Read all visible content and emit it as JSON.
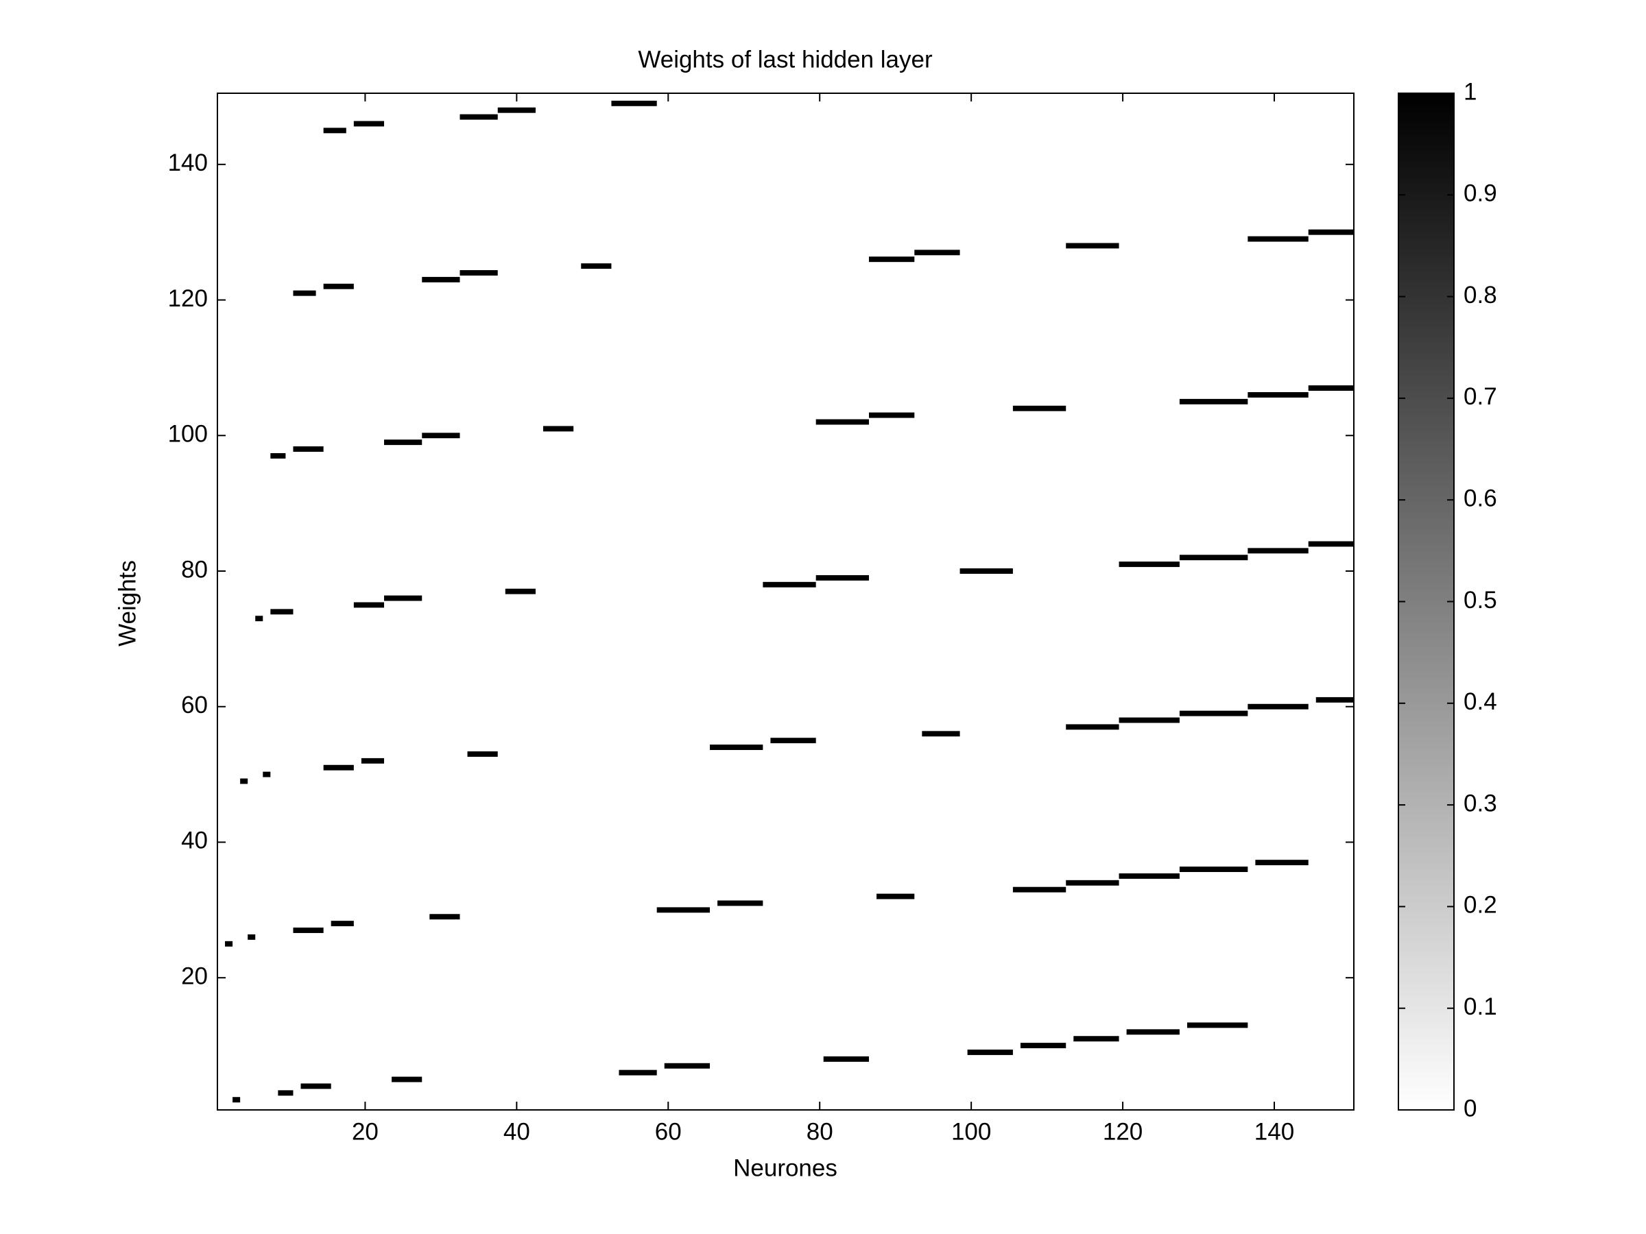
{
  "chart_data": {
    "type": "heatmap",
    "title": "Weights of last hidden layer",
    "x_label": "Neurones",
    "y_label": "Weights",
    "xlim": [
      0.5,
      150.5
    ],
    "ylim": [
      0.5,
      150.5
    ],
    "xticks": [
      20,
      40,
      60,
      80,
      100,
      120,
      140
    ],
    "yticks": [
      20,
      40,
      60,
      80,
      100,
      120,
      140
    ],
    "clim": [
      0,
      1
    ],
    "cticks": [
      0,
      0.1,
      0.2,
      0.3,
      0.4,
      0.5,
      0.6,
      0.7,
      0.8,
      0.9,
      1
    ],
    "colormap": [
      "#ffffff",
      "#000000"
    ],
    "cells": [
      {
        "y": 2,
        "x0": 3,
        "x1": 3,
        "v": 1
      },
      {
        "y": 3,
        "x0": 9,
        "x1": 10,
        "v": 1
      },
      {
        "y": 4,
        "x0": 12,
        "x1": 15,
        "v": 1
      },
      {
        "y": 5,
        "x0": 24,
        "x1": 27,
        "v": 1
      },
      {
        "y": 6,
        "x0": 54,
        "x1": 58,
        "v": 1
      },
      {
        "y": 7,
        "x0": 60,
        "x1": 65,
        "v": 1
      },
      {
        "y": 8,
        "x0": 81,
        "x1": 86,
        "v": 1
      },
      {
        "y": 9,
        "x0": 100,
        "x1": 105,
        "v": 1
      },
      {
        "y": 10,
        "x0": 107,
        "x1": 112,
        "v": 1
      },
      {
        "y": 11,
        "x0": 114,
        "x1": 119,
        "v": 1
      },
      {
        "y": 12,
        "x0": 121,
        "x1": 127,
        "v": 1
      },
      {
        "y": 13,
        "x0": 129,
        "x1": 136,
        "v": 1
      },
      {
        "y": 25,
        "x0": 2,
        "x1": 2,
        "v": 1
      },
      {
        "y": 26,
        "x0": 5,
        "x1": 5,
        "v": 1
      },
      {
        "y": 27,
        "x0": 11,
        "x1": 14,
        "v": 1
      },
      {
        "y": 28,
        "x0": 16,
        "x1": 18,
        "v": 1
      },
      {
        "y": 29,
        "x0": 29,
        "x1": 32,
        "v": 1
      },
      {
        "y": 30,
        "x0": 59,
        "x1": 65,
        "v": 1
      },
      {
        "y": 31,
        "x0": 67,
        "x1": 72,
        "v": 1
      },
      {
        "y": 32,
        "x0": 88,
        "x1": 92,
        "v": 1
      },
      {
        "y": 33,
        "x0": 106,
        "x1": 112,
        "v": 1
      },
      {
        "y": 34,
        "x0": 113,
        "x1": 119,
        "v": 1
      },
      {
        "y": 35,
        "x0": 120,
        "x1": 127,
        "v": 1
      },
      {
        "y": 36,
        "x0": 128,
        "x1": 136,
        "v": 1
      },
      {
        "y": 37,
        "x0": 138,
        "x1": 144,
        "v": 1
      },
      {
        "y": 49,
        "x0": 4,
        "x1": 4,
        "v": 1
      },
      {
        "y": 50,
        "x0": 7,
        "x1": 7,
        "v": 1
      },
      {
        "y": 51,
        "x0": 15,
        "x1": 18,
        "v": 1
      },
      {
        "y": 52,
        "x0": 20,
        "x1": 22,
        "v": 1
      },
      {
        "y": 53,
        "x0": 34,
        "x1": 37,
        "v": 1
      },
      {
        "y": 54,
        "x0": 66,
        "x1": 72,
        "v": 1
      },
      {
        "y": 55,
        "x0": 74,
        "x1": 79,
        "v": 1
      },
      {
        "y": 56,
        "x0": 94,
        "x1": 98,
        "v": 1
      },
      {
        "y": 57,
        "x0": 113,
        "x1": 119,
        "v": 1
      },
      {
        "y": 58,
        "x0": 120,
        "x1": 127,
        "v": 1
      },
      {
        "y": 59,
        "x0": 128,
        "x1": 136,
        "v": 1
      },
      {
        "y": 60,
        "x0": 137,
        "x1": 144,
        "v": 1
      },
      {
        "y": 61,
        "x0": 146,
        "x1": 150,
        "v": 1
      },
      {
        "y": 73,
        "x0": 6,
        "x1": 6,
        "v": 1
      },
      {
        "y": 74,
        "x0": 8,
        "x1": 10,
        "v": 1
      },
      {
        "y": 75,
        "x0": 19,
        "x1": 22,
        "v": 1
      },
      {
        "y": 76,
        "x0": 23,
        "x1": 27,
        "v": 1
      },
      {
        "y": 77,
        "x0": 39,
        "x1": 42,
        "v": 1
      },
      {
        "y": 78,
        "x0": 73,
        "x1": 79,
        "v": 1
      },
      {
        "y": 79,
        "x0": 80,
        "x1": 86,
        "v": 1
      },
      {
        "y": 80,
        "x0": 99,
        "x1": 105,
        "v": 1
      },
      {
        "y": 81,
        "x0": 120,
        "x1": 127,
        "v": 1
      },
      {
        "y": 82,
        "x0": 128,
        "x1": 136,
        "v": 1
      },
      {
        "y": 83,
        "x0": 137,
        "x1": 144,
        "v": 1
      },
      {
        "y": 84,
        "x0": 145,
        "x1": 150,
        "v": 1
      },
      {
        "y": 97,
        "x0": 8,
        "x1": 9,
        "v": 1
      },
      {
        "y": 98,
        "x0": 11,
        "x1": 14,
        "v": 1
      },
      {
        "y": 99,
        "x0": 23,
        "x1": 27,
        "v": 1
      },
      {
        "y": 100,
        "x0": 28,
        "x1": 32,
        "v": 1
      },
      {
        "y": 101,
        "x0": 44,
        "x1": 47,
        "v": 1
      },
      {
        "y": 102,
        "x0": 80,
        "x1": 86,
        "v": 1
      },
      {
        "y": 103,
        "x0": 87,
        "x1": 92,
        "v": 1
      },
      {
        "y": 104,
        "x0": 106,
        "x1": 112,
        "v": 1
      },
      {
        "y": 105,
        "x0": 128,
        "x1": 136,
        "v": 1
      },
      {
        "y": 106,
        "x0": 137,
        "x1": 144,
        "v": 1
      },
      {
        "y": 107,
        "x0": 145,
        "x1": 150,
        "v": 1
      },
      {
        "y": 121,
        "x0": 11,
        "x1": 13,
        "v": 1
      },
      {
        "y": 122,
        "x0": 15,
        "x1": 18,
        "v": 1
      },
      {
        "y": 123,
        "x0": 28,
        "x1": 32,
        "v": 1
      },
      {
        "y": 124,
        "x0": 33,
        "x1": 37,
        "v": 1
      },
      {
        "y": 125,
        "x0": 49,
        "x1": 52,
        "v": 1
      },
      {
        "y": 126,
        "x0": 87,
        "x1": 92,
        "v": 1
      },
      {
        "y": 127,
        "x0": 93,
        "x1": 98,
        "v": 1
      },
      {
        "y": 128,
        "x0": 113,
        "x1": 119,
        "v": 1
      },
      {
        "y": 129,
        "x0": 137,
        "x1": 144,
        "v": 1
      },
      {
        "y": 130,
        "x0": 145,
        "x1": 150,
        "v": 1
      },
      {
        "y": 145,
        "x0": 15,
        "x1": 17,
        "v": 1
      },
      {
        "y": 146,
        "x0": 19,
        "x1": 22,
        "v": 1
      },
      {
        "y": 147,
        "x0": 33,
        "x1": 37,
        "v": 1
      },
      {
        "y": 148,
        "x0": 38,
        "x1": 42,
        "v": 1
      },
      {
        "y": 149,
        "x0": 53,
        "x1": 58,
        "v": 1
      }
    ]
  }
}
